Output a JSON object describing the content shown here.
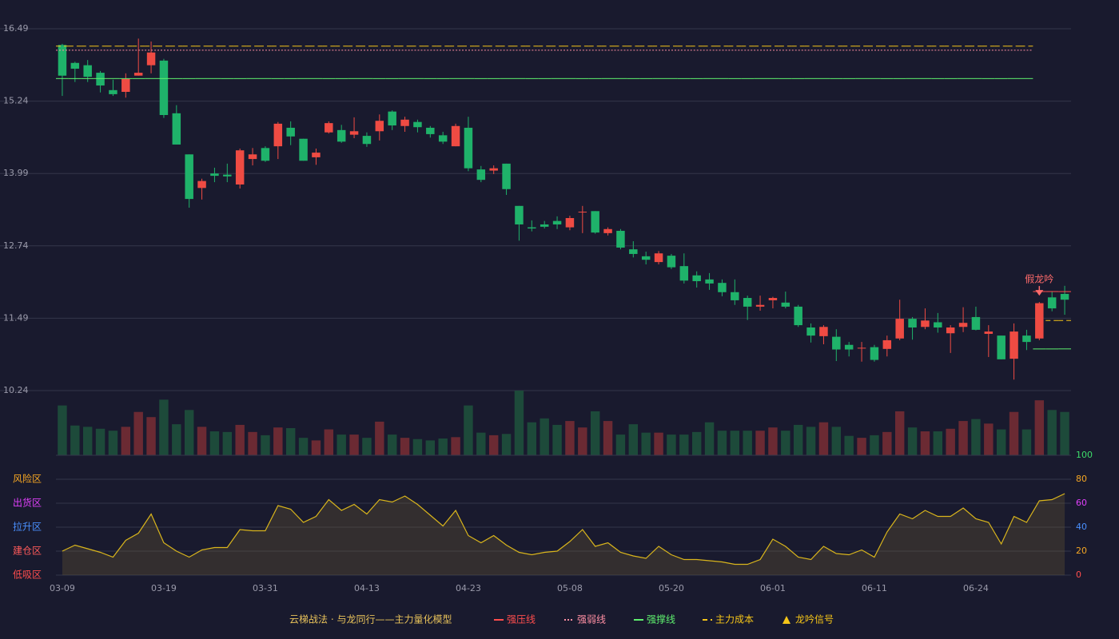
{
  "chart_data": [
    {
      "type": "candlestick",
      "up_color": "#ef4b43",
      "down_color": "#1fb26a",
      "ylim": [
        10.24,
        16.49
      ],
      "yticks": [
        10.24,
        11.49,
        12.74,
        13.99,
        15.24,
        16.49
      ],
      "grid": true,
      "open": [
        16.21,
        15.9,
        15.86,
        15.73,
        15.43,
        15.4,
        15.68,
        15.86,
        15.94,
        15.03,
        14.32,
        13.74,
        13.99,
        13.97,
        13.8,
        14.24,
        14.43,
        14.46,
        14.78,
        14.59,
        14.27,
        14.7,
        14.74,
        14.66,
        14.64,
        14.72,
        15.06,
        14.81,
        14.88,
        14.78,
        14.65,
        14.46,
        14.78,
        14.06,
        14.04,
        14.16,
        13.43,
        13.06,
        13.11,
        13.17,
        13.06,
        13.32,
        13.34,
        12.96,
        13.0,
        12.68,
        12.56,
        12.46,
        12.57,
        12.39,
        12.23,
        12.16,
        12.1,
        11.94,
        11.84,
        11.69,
        11.8,
        11.76,
        11.69,
        11.33,
        11.18,
        11.17,
        11.03,
        10.97,
        10.99,
        10.96,
        11.14,
        11.48,
        11.34,
        11.42,
        11.23,
        11.34,
        11.51,
        11.22,
        11.19,
        10.79,
        11.19,
        11.14,
        11.85,
        11.91
      ],
      "high": [
        16.23,
        15.92,
        15.95,
        15.76,
        15.61,
        15.72,
        16.32,
        16.27,
        15.97,
        15.17,
        14.32,
        13.9,
        14.09,
        14.16,
        14.42,
        14.43,
        14.46,
        14.88,
        14.89,
        14.59,
        14.42,
        14.89,
        14.83,
        14.96,
        14.7,
        15.01,
        15.08,
        14.97,
        14.92,
        14.81,
        14.71,
        14.85,
        14.97,
        14.12,
        14.13,
        14.16,
        13.43,
        13.18,
        13.17,
        13.25,
        13.26,
        13.43,
        13.34,
        13.06,
        13.03,
        12.82,
        12.64,
        12.65,
        12.6,
        12.61,
        12.3,
        12.27,
        12.16,
        12.16,
        11.88,
        11.88,
        11.86,
        11.95,
        11.72,
        11.4,
        11.37,
        11.3,
        11.08,
        11.08,
        11.03,
        11.19,
        11.81,
        11.51,
        11.66,
        11.58,
        11.37,
        11.68,
        11.69,
        11.37,
        11.19,
        11.4,
        11.29,
        11.77,
        11.95,
        12.05
      ],
      "low": [
        15.33,
        15.57,
        15.57,
        15.39,
        15.33,
        15.3,
        15.68,
        15.72,
        14.95,
        14.49,
        13.4,
        13.54,
        13.84,
        13.84,
        13.73,
        14.13,
        14.19,
        14.24,
        14.48,
        14.21,
        14.14,
        14.68,
        14.52,
        14.6,
        14.45,
        14.56,
        14.74,
        14.71,
        14.7,
        14.61,
        14.5,
        14.46,
        14.03,
        13.84,
        13.98,
        13.62,
        12.83,
        12.99,
        13.04,
        13.03,
        13.01,
        12.96,
        12.95,
        12.92,
        12.68,
        12.54,
        12.42,
        12.42,
        12.34,
        12.09,
        12.02,
        11.98,
        11.87,
        11.72,
        11.46,
        11.62,
        11.66,
        11.66,
        11.34,
        11.07,
        11.04,
        10.75,
        10.83,
        10.74,
        10.74,
        10.83,
        11.11,
        11.12,
        11.3,
        11.24,
        10.89,
        11.25,
        11.28,
        10.82,
        10.78,
        10.43,
        10.94,
        11.11,
        11.61,
        11.55
      ],
      "close": [
        15.68,
        15.8,
        15.66,
        15.51,
        15.36,
        15.63,
        15.73,
        16.08,
        15.0,
        14.49,
        13.55,
        13.86,
        13.95,
        13.94,
        14.39,
        14.32,
        14.21,
        14.85,
        14.63,
        14.21,
        14.35,
        14.86,
        14.54,
        14.72,
        14.5,
        14.9,
        14.82,
        14.92,
        14.79,
        14.67,
        14.54,
        14.81,
        14.08,
        13.88,
        14.08,
        13.72,
        13.11,
        13.04,
        13.07,
        13.11,
        13.22,
        13.33,
        12.97,
        13.03,
        12.71,
        12.6,
        12.5,
        12.61,
        12.37,
        12.14,
        12.13,
        12.09,
        11.94,
        11.8,
        11.69,
        11.72,
        11.84,
        11.69,
        11.37,
        11.19,
        11.34,
        10.95,
        10.95,
        10.98,
        10.77,
        11.11,
        11.48,
        11.33,
        11.45,
        11.33,
        11.33,
        11.41,
        11.29,
        11.26,
        10.78,
        11.26,
        11.08,
        11.75,
        11.66,
        11.81
      ],
      "legend_title": "云梯战法 · 与龙同行——主力量化模型",
      "annotation": "假龙吟",
      "annotation_color": "#ff6b6b",
      "series": [
        {
          "name": "强压线",
          "color": "#ff4d4d",
          "style": "solid",
          "values": [
            null,
            null,
            null,
            null,
            null,
            null,
            null,
            null,
            null,
            null,
            null,
            null,
            null,
            null,
            null,
            null,
            null,
            null,
            null,
            null,
            null,
            null,
            null,
            null,
            null,
            null,
            null,
            null,
            null,
            null,
            null,
            null,
            null,
            null,
            null,
            null,
            null,
            null,
            null,
            null,
            null,
            null,
            null,
            null,
            null,
            null,
            null,
            null,
            null,
            null,
            null,
            null,
            null,
            null,
            null,
            null,
            null,
            null,
            null,
            null,
            null,
            null,
            null,
            null,
            null,
            null,
            null,
            null,
            null,
            null,
            null,
            null,
            null,
            null,
            null,
            null,
            null,
            11.95,
            11.95,
            11.95
          ]
        },
        {
          "name": "强弱线",
          "color": "#ff8fa3",
          "style": "dotted",
          "values": [
            16.12,
            16.12,
            16.12,
            16.12,
            16.12,
            16.12,
            16.12,
            16.12,
            16.12,
            16.12,
            16.12,
            16.12,
            16.12,
            16.12,
            16.12,
            16.12,
            16.12,
            16.12,
            16.12,
            16.12,
            16.12,
            16.12,
            16.12,
            16.12,
            16.12,
            16.12,
            16.12,
            16.12,
            16.12,
            16.12,
            16.12,
            16.12,
            16.12,
            16.12,
            16.12,
            16.12,
            16.12,
            16.12,
            16.12,
            16.12,
            16.12,
            16.12,
            16.12,
            16.12,
            16.12,
            16.12,
            16.12,
            16.12,
            16.12,
            16.12,
            16.12,
            16.12,
            16.12,
            16.12,
            16.12,
            16.12,
            16.12,
            16.12,
            16.12,
            16.12,
            16.12,
            16.12,
            16.12,
            16.12,
            16.12,
            16.12,
            16.12,
            16.12,
            16.12,
            16.12,
            16.12,
            16.12,
            16.12,
            16.12,
            16.12,
            16.12,
            16.12,
            null,
            null,
            null
          ]
        },
        {
          "name": "强撑线",
          "color": "#5ef06e",
          "style": "solid",
          "values": [
            15.63,
            15.63,
            15.63,
            15.63,
            15.63,
            15.63,
            15.63,
            15.63,
            15.63,
            15.63,
            15.63,
            15.63,
            15.63,
            15.63,
            15.63,
            15.63,
            15.63,
            15.63,
            15.63,
            15.63,
            15.63,
            15.63,
            15.63,
            15.63,
            15.63,
            15.63,
            15.63,
            15.63,
            15.63,
            15.63,
            15.63,
            15.63,
            15.63,
            15.63,
            15.63,
            15.63,
            15.63,
            15.63,
            15.63,
            15.63,
            15.63,
            15.63,
            15.63,
            15.63,
            15.63,
            15.63,
            15.63,
            15.63,
            15.63,
            15.63,
            15.63,
            15.63,
            15.63,
            15.63,
            15.63,
            15.63,
            15.63,
            15.63,
            15.63,
            15.63,
            15.63,
            15.63,
            15.63,
            15.63,
            15.63,
            15.63,
            15.63,
            15.63,
            15.63,
            15.63,
            15.63,
            15.63,
            15.63,
            15.63,
            15.63,
            15.63,
            15.63,
            10.96,
            10.96,
            10.96
          ]
        },
        {
          "name": "主力成本",
          "color": "#f5c518",
          "style": "dashed",
          "values": [
            16.19,
            16.19,
            16.19,
            16.19,
            16.19,
            16.19,
            16.19,
            16.19,
            16.19,
            16.19,
            16.19,
            16.19,
            16.19,
            16.19,
            16.19,
            16.19,
            16.19,
            16.19,
            16.19,
            16.19,
            16.19,
            16.19,
            16.19,
            16.19,
            16.19,
            16.19,
            16.19,
            16.19,
            16.19,
            16.19,
            16.19,
            16.19,
            16.19,
            16.19,
            16.19,
            16.19,
            16.19,
            16.19,
            16.19,
            16.19,
            16.19,
            16.19,
            16.19,
            16.19,
            16.19,
            16.19,
            16.19,
            16.19,
            16.19,
            16.19,
            16.19,
            16.19,
            16.19,
            16.19,
            16.19,
            16.19,
            16.19,
            16.19,
            16.19,
            16.19,
            16.19,
            16.19,
            16.19,
            16.19,
            16.19,
            16.19,
            16.19,
            16.19,
            16.19,
            16.19,
            16.19,
            16.19,
            16.19,
            16.19,
            16.19,
            16.19,
            16.19,
            null,
            11.45,
            11.45
          ]
        },
        {
          "name": "龙吟信号",
          "color": "#f5c518",
          "style": "signal",
          "values": [
            null,
            null,
            null,
            null,
            null,
            null,
            null,
            null,
            null,
            null,
            null,
            null,
            null,
            null,
            null,
            null,
            null,
            null,
            null,
            null,
            null,
            null,
            null,
            null,
            null,
            null,
            null,
            null,
            null,
            null,
            null,
            null,
            null,
            null,
            null,
            null,
            null,
            null,
            null,
            null,
            null,
            null,
            null,
            null,
            null,
            null,
            null,
            null,
            null,
            null,
            null,
            null,
            null,
            null,
            null,
            null,
            null,
            null,
            null,
            null,
            null,
            null,
            null,
            null,
            null,
            null,
            null,
            null,
            null,
            null,
            null,
            null,
            null,
            null,
            null,
            null,
            null,
            11.77,
            null,
            null
          ]
        }
      ]
    },
    {
      "type": "bar",
      "up_color": "#6b2a33",
      "down_color": "#1d4a3a",
      "ylim": [
        0,
        100
      ],
      "values": [
        77,
        46,
        44,
        41,
        38,
        44,
        67,
        59,
        86,
        48,
        70,
        44,
        37,
        36,
        47,
        36,
        31,
        43,
        42,
        27,
        23,
        40,
        32,
        32,
        27,
        52,
        32,
        27,
        25,
        23,
        26,
        28,
        77,
        35,
        31,
        33,
        100,
        51,
        57,
        47,
        53,
        43,
        68,
        53,
        32,
        48,
        35,
        35,
        32,
        32,
        36,
        51,
        38,
        38,
        38,
        38,
        43,
        38,
        47,
        44,
        51,
        44,
        30,
        27,
        31,
        36,
        68,
        43,
        37,
        37,
        41,
        53,
        56,
        49,
        40,
        67,
        40,
        85,
        70,
        67
      ]
    },
    {
      "type": "area",
      "color": "#d9b51c",
      "fill": "rgba(120,100,50,0.28)",
      "ylim": [
        0,
        100
      ],
      "yticks": [
        0,
        20,
        40,
        60,
        80,
        100
      ],
      "ytick_colors": [
        "#ff4d4d",
        "#f5a623",
        "#4a90ff",
        "#e040fb",
        "#f5a623",
        "#3ddc6a"
      ],
      "zones": [
        {
          "value": 80,
          "label": "风险区",
          "color": "#f5a623"
        },
        {
          "value": 60,
          "label": "出货区",
          "color": "#e040fb"
        },
        {
          "value": 40,
          "label": "拉升区",
          "color": "#4a90ff"
        },
        {
          "value": 20,
          "label": "建仓区",
          "color": "#ff5a5a"
        },
        {
          "value": 0,
          "label": "低吸区",
          "color": "#ff4d4d"
        }
      ],
      "categories": [
        "03-09",
        null,
        null,
        null,
        null,
        null,
        null,
        null,
        "03-19",
        null,
        null,
        null,
        null,
        null,
        null,
        null,
        "03-31",
        null,
        null,
        null,
        null,
        null,
        null,
        null,
        "04-13",
        null,
        null,
        null,
        null,
        null,
        null,
        null,
        "04-23",
        null,
        null,
        null,
        null,
        null,
        null,
        null,
        "05-08",
        null,
        null,
        null,
        null,
        null,
        null,
        null,
        "05-20",
        null,
        null,
        null,
        null,
        null,
        null,
        null,
        "06-01",
        null,
        null,
        null,
        null,
        null,
        null,
        null,
        "06-11",
        null,
        null,
        null,
        null,
        null,
        null,
        null,
        "06-24",
        null,
        null,
        null,
        null,
        null,
        null,
        null
      ],
      "values": [
        20,
        25,
        22,
        19,
        15,
        29,
        35,
        51,
        27,
        20,
        15,
        21,
        23,
        23,
        38,
        37,
        37,
        58,
        55,
        44,
        49,
        63,
        54,
        59,
        51,
        63,
        61,
        66,
        59,
        50,
        41,
        54,
        33,
        27,
        33,
        25,
        19,
        17,
        19,
        20,
        28,
        38,
        24,
        27,
        19,
        16,
        14,
        24,
        17,
        13,
        13,
        12,
        11,
        9,
        9,
        13,
        30,
        24,
        15,
        13,
        24,
        18,
        17,
        21,
        15,
        36,
        51,
        47,
        54,
        49,
        49,
        56,
        47,
        44,
        26,
        49,
        44,
        62,
        63,
        68
      ]
    }
  ]
}
